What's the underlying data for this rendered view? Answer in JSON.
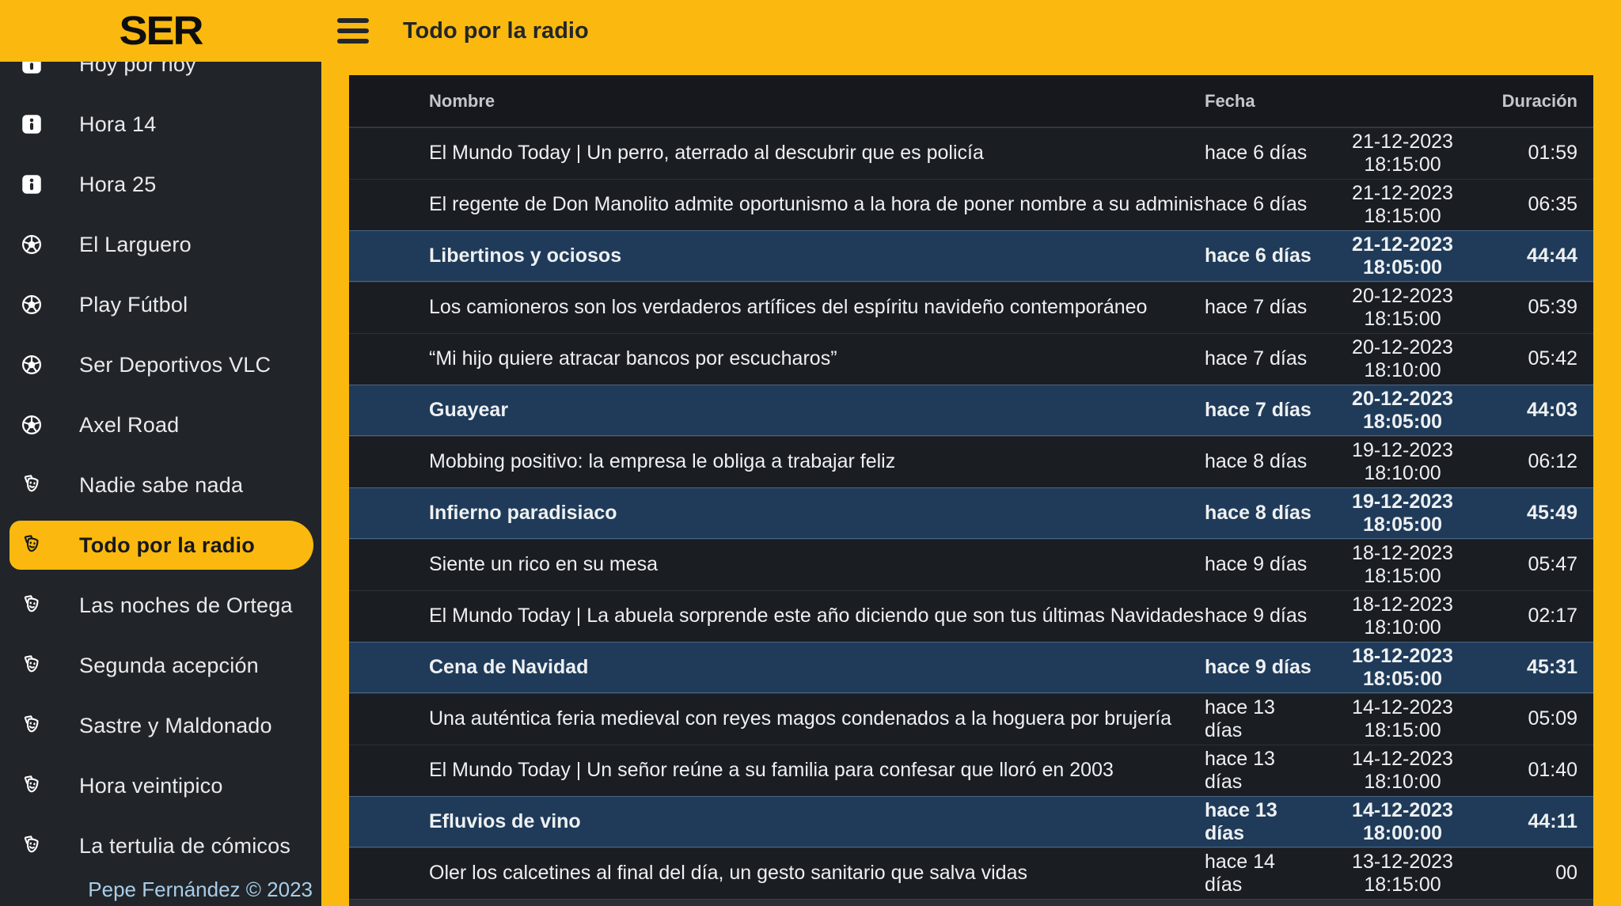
{
  "brand": {
    "logo_text": "SER",
    "footer_credit": "Pepe Fernández © 2023"
  },
  "header": {
    "title": "Todo por la radio",
    "menu_icon": "hamburger-icon"
  },
  "colors": {
    "accent_yellow": "#fbb90f",
    "sidebar_bg": "#212529",
    "table_row_bg": "#1a1d22",
    "table_header_bg": "#16181d",
    "highlight_row_bg": "#1f3b59",
    "footer_text": "#a9cde9",
    "text_light": "#eef0f2",
    "text_dark": "#17181a"
  },
  "sidebar": {
    "items": [
      {
        "label": "Hoy por hoy",
        "icon": "info-icon",
        "active": false
      },
      {
        "label": "Hora 14",
        "icon": "info-icon",
        "active": false
      },
      {
        "label": "Hora 25",
        "icon": "info-icon",
        "active": false
      },
      {
        "label": "El Larguero",
        "icon": "soccer-icon",
        "active": false
      },
      {
        "label": "Play Fútbol",
        "icon": "soccer-icon",
        "active": false
      },
      {
        "label": "Ser Deportivos VLC",
        "icon": "soccer-icon",
        "active": false
      },
      {
        "label": "Axel Road",
        "icon": "soccer-icon",
        "active": false
      },
      {
        "label": "Nadie sabe nada",
        "icon": "masks-icon",
        "active": false
      },
      {
        "label": "Todo por la radio",
        "icon": "masks-icon",
        "active": true
      },
      {
        "label": "Las noches de Ortega",
        "icon": "masks-icon",
        "active": false
      },
      {
        "label": "Segunda acepción",
        "icon": "masks-icon",
        "active": false
      },
      {
        "label": "Sastre y Maldonado",
        "icon": "masks-icon",
        "active": false
      },
      {
        "label": "Hora veintipico",
        "icon": "masks-icon",
        "active": false
      },
      {
        "label": "La tertulia de cómicos",
        "icon": "masks-icon",
        "active": false
      }
    ]
  },
  "table": {
    "headers": {
      "name": "Nombre",
      "date": "Fecha",
      "duration": "Duración"
    },
    "row_icon": "antenna-icon",
    "rows": [
      {
        "name": "El Mundo Today | Un perro, aterrado al descubrir que es policía",
        "ago": "hace 6 días",
        "datetime": "21-12-2023 18:15:00",
        "duration": "01:59",
        "highlighted": false
      },
      {
        "name": "El regente de Don Manolito admite oportunismo a la hora de poner nombre a su administración de lotería",
        "ago": "hace 6 días",
        "datetime": "21-12-2023 18:15:00",
        "duration": "06:35",
        "highlighted": false
      },
      {
        "name": "Libertinos y ociosos",
        "ago": "hace 6 días",
        "datetime": "21-12-2023 18:05:00",
        "duration": "44:44",
        "highlighted": true
      },
      {
        "name": "Los camioneros son los verdaderos artífices del espíritu navideño contemporáneo",
        "ago": "hace 7 días",
        "datetime": "20-12-2023 18:15:00",
        "duration": "05:39",
        "highlighted": false
      },
      {
        "name": "“Mi hijo quiere atracar bancos por escucharos”",
        "ago": "hace 7 días",
        "datetime": "20-12-2023 18:10:00",
        "duration": "05:42",
        "highlighted": false
      },
      {
        "name": "Guayear",
        "ago": "hace 7 días",
        "datetime": "20-12-2023 18:05:00",
        "duration": "44:03",
        "highlighted": true
      },
      {
        "name": "Mobbing positivo: la empresa le obliga a trabajar feliz",
        "ago": "hace 8 días",
        "datetime": "19-12-2023 18:10:00",
        "duration": "06:12",
        "highlighted": false
      },
      {
        "name": "Infierno paradisiaco",
        "ago": "hace 8 días",
        "datetime": "19-12-2023 18:05:00",
        "duration": "45:49",
        "highlighted": true
      },
      {
        "name": "Siente un rico en su mesa",
        "ago": "hace 9 días",
        "datetime": "18-12-2023 18:15:00",
        "duration": "05:47",
        "highlighted": false
      },
      {
        "name": "El Mundo Today | La abuela sorprende este año diciendo que son tus últimas Navidades",
        "ago": "hace 9 días",
        "datetime": "18-12-2023 18:10:00",
        "duration": "02:17",
        "highlighted": false
      },
      {
        "name": "Cena de Navidad",
        "ago": "hace 9 días",
        "datetime": "18-12-2023 18:05:00",
        "duration": "45:31",
        "highlighted": true
      },
      {
        "name": "Una auténtica feria medieval con reyes magos condenados a la hoguera por brujería",
        "ago": "hace 13 días",
        "datetime": "14-12-2023 18:15:00",
        "duration": "05:09",
        "highlighted": false
      },
      {
        "name": "El Mundo Today | Un señor reúne a su familia para confesar que lloró en 2003",
        "ago": "hace 13 días",
        "datetime": "14-12-2023 18:10:00",
        "duration": "01:40",
        "highlighted": false
      },
      {
        "name": "Efluvios de vino",
        "ago": "hace 13 días",
        "datetime": "14-12-2023 18:00:00",
        "duration": "44:11",
        "highlighted": true
      },
      {
        "name": "Oler los calcetines al final del día, un gesto sanitario que salva vidas",
        "ago": "hace 14 días",
        "datetime": "13-12-2023 18:15:00",
        "duration": "00",
        "highlighted": false
      }
    ]
  }
}
